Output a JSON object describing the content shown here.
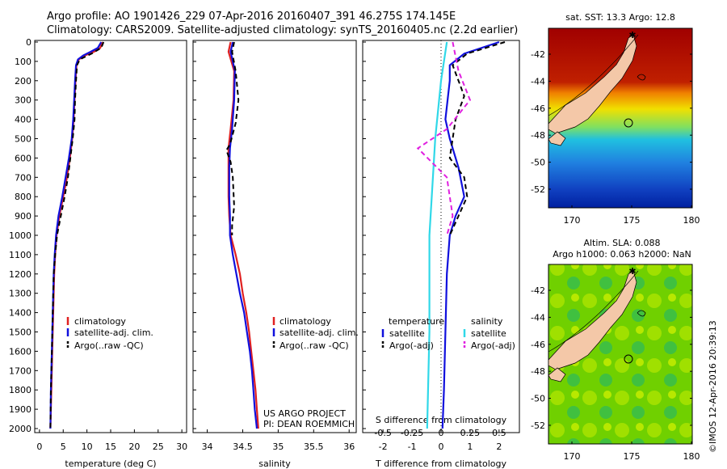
{
  "header": {
    "line1": "Argo profile: AO 1901426_229 07-Apr-2016 20160407_391 46.275S 174.145E",
    "line2": "Climatology: CARS2009. Satellite-adjusted climatology: synTS_20160405.nc (2.2d earlier)"
  },
  "colors": {
    "climatology": "#e02020",
    "satellite": "#1010dd",
    "argo": "#000000",
    "sal_sat": "#30d8e8",
    "sal_argo": "#e020e0",
    "land": "#f4c8a8"
  },
  "chart_data": [
    {
      "type": "line",
      "name": "temperature-profile",
      "xlabel": "temperature (deg C)",
      "ylabel": "",
      "xlim": [
        -1,
        31
      ],
      "ylim": [
        2050,
        0
      ],
      "y_inverted": true,
      "xticks": [
        "0",
        "5",
        "10",
        "15",
        "20",
        "25",
        "30"
      ],
      "yticks": [
        "0",
        "100",
        "200",
        "300",
        "400",
        "500",
        "600",
        "700",
        "800",
        "900",
        "1000",
        "1100",
        "1200",
        "1300",
        "1400",
        "1500",
        "1600",
        "1700",
        "1800",
        "1900",
        "2000"
      ],
      "legend": [
        "climatology",
        "satellite-adj. clim.",
        "Argo(..raw -QC)"
      ],
      "series": [
        {
          "name": "climatology",
          "style": "solid",
          "color": "#e02020",
          "points": [
            [
              13.3,
              0
            ],
            [
              12.8,
              30
            ],
            [
              11.5,
              50
            ],
            [
              9.5,
              70
            ],
            [
              8.3,
              90
            ],
            [
              7.8,
              120
            ],
            [
              7.6,
              200
            ],
            [
              7.4,
              300
            ],
            [
              7.2,
              400
            ],
            [
              6.9,
              500
            ],
            [
              6.4,
              600
            ],
            [
              5.8,
              700
            ],
            [
              5.0,
              800
            ],
            [
              4.2,
              900
            ],
            [
              3.6,
              1000
            ],
            [
              3.3,
              1100
            ],
            [
              3.1,
              1200
            ],
            [
              2.9,
              1400
            ],
            [
              2.7,
              1600
            ],
            [
              2.5,
              1800
            ],
            [
              2.3,
              2000
            ]
          ]
        },
        {
          "name": "satellite-adj. clim.",
          "style": "solid",
          "color": "#1010dd",
          "points": [
            [
              13.0,
              0
            ],
            [
              12.3,
              30
            ],
            [
              10.8,
              50
            ],
            [
              9.2,
              70
            ],
            [
              8.1,
              90
            ],
            [
              7.7,
              120
            ],
            [
              7.5,
              200
            ],
            [
              7.3,
              300
            ],
            [
              7.1,
              400
            ],
            [
              6.8,
              500
            ],
            [
              6.2,
              600
            ],
            [
              5.5,
              700
            ],
            [
              4.8,
              800
            ],
            [
              4.0,
              900
            ],
            [
              3.5,
              1000
            ],
            [
              3.2,
              1100
            ],
            [
              3.0,
              1200
            ],
            [
              2.8,
              1400
            ],
            [
              2.6,
              1600
            ],
            [
              2.4,
              1800
            ],
            [
              2.3,
              2000
            ]
          ]
        },
        {
          "name": "Argo(..raw -QC)",
          "style": "dashed",
          "color": "#000000",
          "points": [
            [
              13.5,
              0
            ],
            [
              13.0,
              30
            ],
            [
              11.0,
              60
            ],
            [
              8.5,
              90
            ],
            [
              7.9,
              120
            ],
            [
              7.7,
              200
            ],
            [
              7.5,
              300
            ],
            [
              7.4,
              400
            ],
            [
              7.0,
              500
            ],
            [
              6.5,
              600
            ],
            [
              6.0,
              700
            ],
            [
              5.3,
              800
            ],
            [
              4.5,
              900
            ],
            [
              3.7,
              1000
            ],
            [
              3.3,
              1100
            ],
            [
              3.0,
              1200
            ],
            [
              2.8,
              1400
            ],
            [
              2.6,
              1600
            ],
            [
              2.4,
              1800
            ],
            [
              2.3,
              2000
            ]
          ]
        }
      ]
    },
    {
      "type": "line",
      "name": "salinity-profile",
      "xlabel": "salinity",
      "xlim": [
        33.8,
        36.1
      ],
      "ylim": [
        2050,
        0
      ],
      "y_inverted": true,
      "xticks": [
        "34",
        "34.5",
        "35",
        "35.5",
        "36"
      ],
      "legend": [
        "climatology",
        "satellite-adj. clim.",
        "Argo(..raw -QC)"
      ],
      "annotation": [
        "US ARGO PROJECT",
        "PI: DEAN ROEMMICH"
      ],
      "series": [
        {
          "name": "climatology",
          "style": "solid",
          "color": "#e02020",
          "points": [
            [
              34.33,
              0
            ],
            [
              34.3,
              50
            ],
            [
              34.38,
              150
            ],
            [
              34.37,
              300
            ],
            [
              34.33,
              450
            ],
            [
              34.3,
              550
            ],
            [
              34.3,
              650
            ],
            [
              34.3,
              800
            ],
            [
              34.31,
              900
            ],
            [
              34.33,
              1000
            ],
            [
              34.4,
              1100
            ],
            [
              34.46,
              1200
            ],
            [
              34.5,
              1300
            ],
            [
              34.55,
              1400
            ],
            [
              34.59,
              1500
            ],
            [
              34.62,
              1600
            ],
            [
              34.65,
              1700
            ],
            [
              34.68,
              1800
            ],
            [
              34.7,
              1900
            ],
            [
              34.72,
              2000
            ]
          ]
        },
        {
          "name": "satellite-adj. clim.",
          "style": "solid",
          "color": "#1010dd",
          "points": [
            [
              34.36,
              0
            ],
            [
              34.33,
              50
            ],
            [
              34.39,
              150
            ],
            [
              34.38,
              300
            ],
            [
              34.35,
              450
            ],
            [
              34.32,
              550
            ],
            [
              34.31,
              650
            ],
            [
              34.31,
              800
            ],
            [
              34.32,
              900
            ],
            [
              34.32,
              1000
            ],
            [
              34.36,
              1100
            ],
            [
              34.41,
              1200
            ],
            [
              34.46,
              1300
            ],
            [
              34.52,
              1400
            ],
            [
              34.56,
              1500
            ],
            [
              34.6,
              1600
            ],
            [
              34.63,
              1700
            ],
            [
              34.65,
              1800
            ],
            [
              34.67,
              1900
            ],
            [
              34.7,
              2000
            ]
          ]
        },
        {
          "name": "Argo(..raw -QC)",
          "style": "dashed",
          "color": "#000000",
          "points": [
            [
              34.38,
              0
            ],
            [
              34.35,
              50
            ],
            [
              34.4,
              150
            ],
            [
              34.44,
              300
            ],
            [
              34.4,
              420
            ],
            [
              34.32,
              530
            ],
            [
              34.27,
              560
            ],
            [
              34.33,
              620
            ],
            [
              34.36,
              700
            ],
            [
              34.38,
              850
            ],
            [
              34.35,
              950
            ],
            [
              34.35,
              1000
            ]
          ]
        }
      ]
    },
    {
      "type": "line",
      "name": "difference-from-climatology",
      "xlabel": "T difference from climatology",
      "xlabel_top": "S difference from climatology",
      "xlim": [
        -2.7,
        2.7
      ],
      "ylim": [
        2050,
        0
      ],
      "y_inverted": true,
      "xticks": [
        "-2",
        "-1",
        "0",
        "1",
        "2"
      ],
      "xticks_top": [
        "-0.5",
        "-0.25",
        "0",
        "0.25",
        "0.5"
      ],
      "legend": [
        "temperature",
        "satellite",
        "Argo(-adj)",
        "salinity",
        "satellite",
        "Argo(-adj)"
      ],
      "series": [
        {
          "name": "temperature satellite",
          "style": "solid",
          "color": "#1010dd",
          "points": [
            [
              2.0,
              0
            ],
            [
              0.8,
              60
            ],
            [
              0.3,
              120
            ],
            [
              0.3,
              200
            ],
            [
              0.15,
              400
            ],
            [
              0.3,
              500
            ],
            [
              0.6,
              650
            ],
            [
              0.8,
              800
            ],
            [
              0.5,
              900
            ],
            [
              0.3,
              1000
            ],
            [
              0.2,
              1200
            ],
            [
              0.15,
              1500
            ],
            [
              0.1,
              1800
            ],
            [
              0.05,
              2000
            ]
          ]
        },
        {
          "name": "temperature Argo(-adj)",
          "style": "dashed",
          "color": "#000000",
          "points": [
            [
              2.2,
              0
            ],
            [
              0.9,
              60
            ],
            [
              0.4,
              120
            ],
            [
              0.6,
              200
            ],
            [
              0.8,
              280
            ],
            [
              0.5,
              400
            ],
            [
              0.4,
              500
            ],
            [
              0.3,
              600
            ],
            [
              0.8,
              700
            ],
            [
              0.9,
              800
            ],
            [
              0.6,
              900
            ],
            [
              0.3,
              1000
            ]
          ]
        },
        {
          "name": "salinity satellite",
          "style": "solid",
          "color": "#30d8e8",
          "points": [
            [
              0.05,
              0
            ],
            [
              0.0,
              200
            ],
            [
              -0.05,
              500
            ],
            [
              -0.08,
              800
            ],
            [
              -0.1,
              1000
            ],
            [
              -0.1,
              1500
            ],
            [
              -0.12,
              2000
            ]
          ]
        },
        {
          "name": "salinity Argo(-adj)",
          "style": "dashed",
          "color": "#e020e0",
          "points": [
            [
              0.1,
              0
            ],
            [
              0.15,
              150
            ],
            [
              0.25,
              300
            ],
            [
              0.05,
              450
            ],
            [
              -0.2,
              550
            ],
            [
              0.05,
              700
            ],
            [
              0.1,
              900
            ],
            [
              0.05,
              1000
            ]
          ]
        }
      ]
    }
  ],
  "maps": [
    {
      "name": "sst-map",
      "title": "sat. SST: 13.3 Argo: 12.8",
      "xticks": [
        "170",
        "175",
        "180"
      ],
      "yticks": [
        "-42",
        "-44",
        "-46",
        "-48",
        "-50",
        "-52"
      ]
    },
    {
      "name": "sla-map",
      "title_line1": "Altim. SLA: 0.088",
      "title_line2": "Argo h1000: 0.063 h2000: NaN",
      "xticks": [
        "170",
        "175",
        "180"
      ],
      "yticks": [
        "-42",
        "-44",
        "-46",
        "-48",
        "-50",
        "-52"
      ]
    }
  ],
  "stamp": "©IMOS 12-Apr-2016 20:39:13"
}
